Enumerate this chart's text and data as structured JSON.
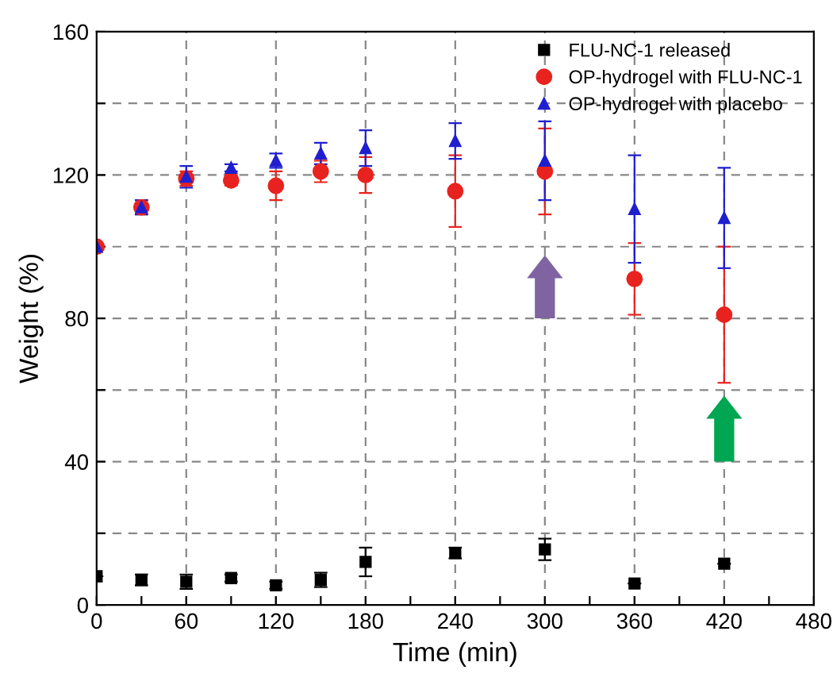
{
  "chart_data": {
    "type": "scatter",
    "xlabel": "Time (min)",
    "ylabel": "Weight (%)",
    "x": [
      0,
      30,
      60,
      90,
      120,
      150,
      180,
      240,
      300,
      360,
      420
    ],
    "series": [
      {
        "name": "FLU-NC-1 released",
        "color": "#000000",
        "marker": "square",
        "values": [
          8,
          7,
          6.5,
          7.5,
          5.5,
          7,
          12,
          14.5,
          15.5,
          6,
          11.5
        ],
        "errors": [
          null,
          1.5,
          2,
          1,
          1,
          2,
          4,
          1.5,
          3,
          null,
          null
        ]
      },
      {
        "name": "OP-hydrogel with FLU-NC-1",
        "color": "#e8231f",
        "marker": "circle",
        "values": [
          100,
          111,
          119,
          118.5,
          117,
          121,
          120,
          115.5,
          121,
          91,
          81
        ],
        "errors": [
          null,
          2,
          2,
          1.5,
          4,
          3,
          5,
          10,
          12,
          10,
          19
        ]
      },
      {
        "name": "OP-hydrogel with placebo",
        "color": "#1f1fd0",
        "marker": "triangle",
        "values": [
          100,
          111,
          119.5,
          122,
          124,
          126,
          127.5,
          129.5,
          124,
          110.5,
          108
        ],
        "errors": [
          null,
          2,
          3,
          1,
          2,
          3,
          5,
          5,
          11,
          15,
          14
        ]
      }
    ],
    "xlim": [
      0,
      480
    ],
    "xticks": [
      0,
      {
        "value": 30,
        "label": null
      },
      60,
      {
        "value": 90,
        "label": null
      },
      120,
      {
        "value": 150,
        "label": null
      },
      180,
      {
        "value": 210,
        "label": null
      },
      240,
      {
        "value": 270,
        "label": null
      },
      300,
      {
        "value": 330,
        "label": null
      },
      360,
      {
        "value": 390,
        "label": null
      },
      420,
      {
        "value": 450,
        "label": null
      },
      480
    ],
    "ylim": [
      0,
      160
    ],
    "yticks": [
      0,
      {
        "value": 20,
        "label": null
      },
      40,
      {
        "value": 60,
        "label": null
      },
      80,
      {
        "value": 100,
        "label": null
      },
      120,
      {
        "value": 140,
        "label": null
      },
      160
    ],
    "grid": true,
    "legend": "top right"
  }
}
